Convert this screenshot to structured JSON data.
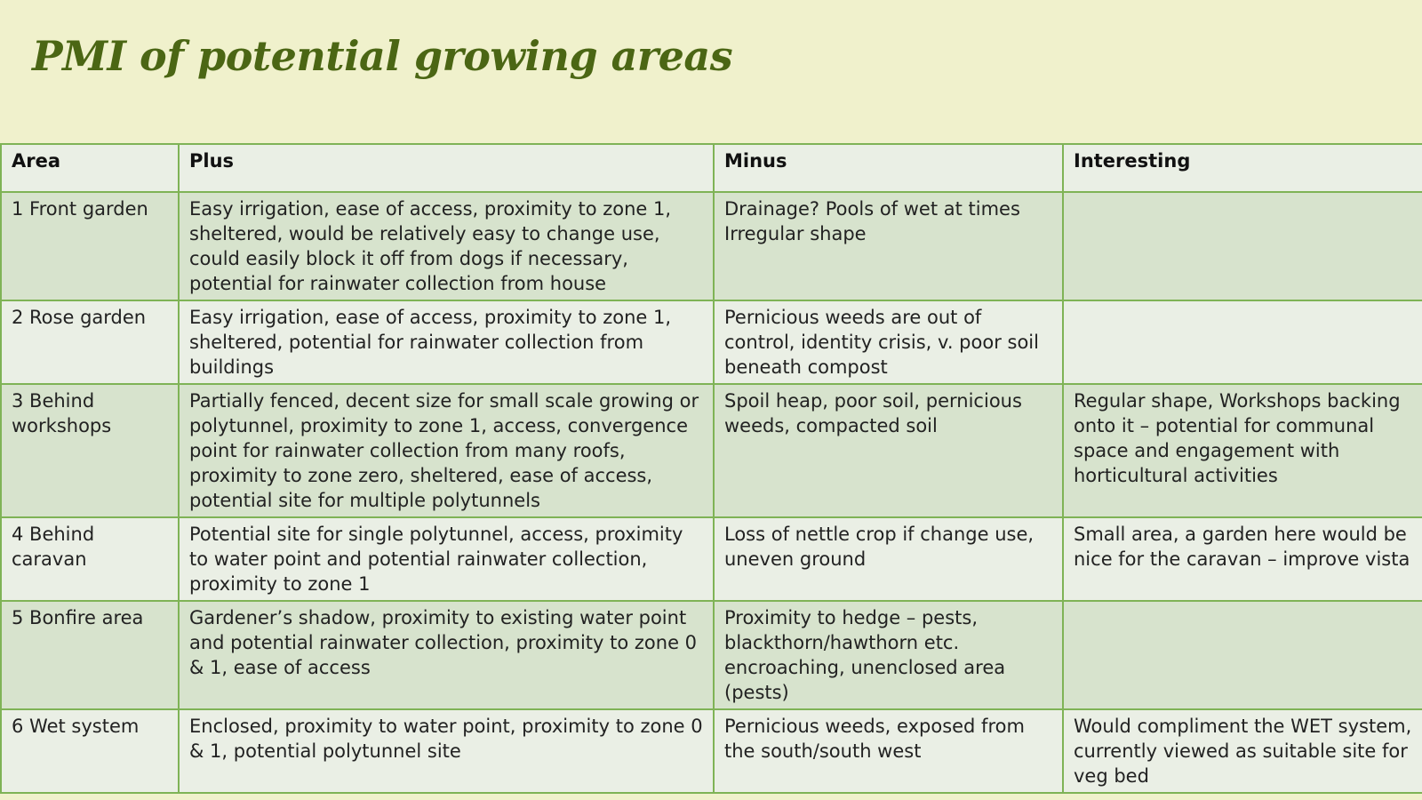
{
  "slide": {
    "title": "PMI of potential growing areas"
  },
  "table": {
    "headers": [
      "Area",
      "Plus",
      "Minus",
      "Interesting"
    ],
    "rows": [
      {
        "area": "1 Front garden",
        "plus": "Easy irrigation, ease of access, proximity to zone 1, sheltered, would be relatively easy to change use, could easily block it off from dogs if necessary, potential for rainwater collection from house",
        "minus": "Drainage? Pools of wet at times Irregular shape",
        "interesting": ""
      },
      {
        "area": "2 Rose garden",
        "plus": "Easy irrigation, ease of access, proximity to zone 1, sheltered, potential for rainwater collection from buildings",
        "minus": "Pernicious weeds are out of control, identity crisis, v. poor soil beneath compost",
        "interesting": ""
      },
      {
        "area": "3 Behind workshops",
        "plus": "Partially fenced, decent size for small scale growing or polytunnel, proximity to zone 1, access, convergence point for rainwater collection from many roofs, proximity to zone zero, sheltered, ease of access, potential site for multiple polytunnels",
        "minus": "Spoil heap, poor soil, pernicious weeds, compacted soil",
        "interesting": "Regular shape, Workshops backing onto it – potential for communal space and engagement with horticultural activities"
      },
      {
        "area": "4 Behind caravan",
        "plus": "Potential site for single polytunnel, access, proximity to water point and potential rainwater collection, proximity to zone 1",
        "minus": "Loss of nettle crop if change use, uneven ground",
        "interesting": "Small area, a garden here would be nice for the caravan – improve vista"
      },
      {
        "area": "5 Bonfire area",
        "plus": "Gardener’s shadow, proximity to existing water point and potential rainwater collection, proximity to zone 0 & 1, ease of access",
        "minus": "Proximity to hedge – pests, blackthorn/hawthorn etc. encroaching, unenclosed area (pests)",
        "interesting": ""
      },
      {
        "area": "6 Wet system",
        "plus": "Enclosed, proximity to water point, proximity to zone 0 & 1, potential polytunnel site",
        "minus": "Pernicious weeds, exposed from the south/south west",
        "interesting": "Would compliment the WET system, currently viewed as suitable site for veg bed"
      }
    ]
  }
}
